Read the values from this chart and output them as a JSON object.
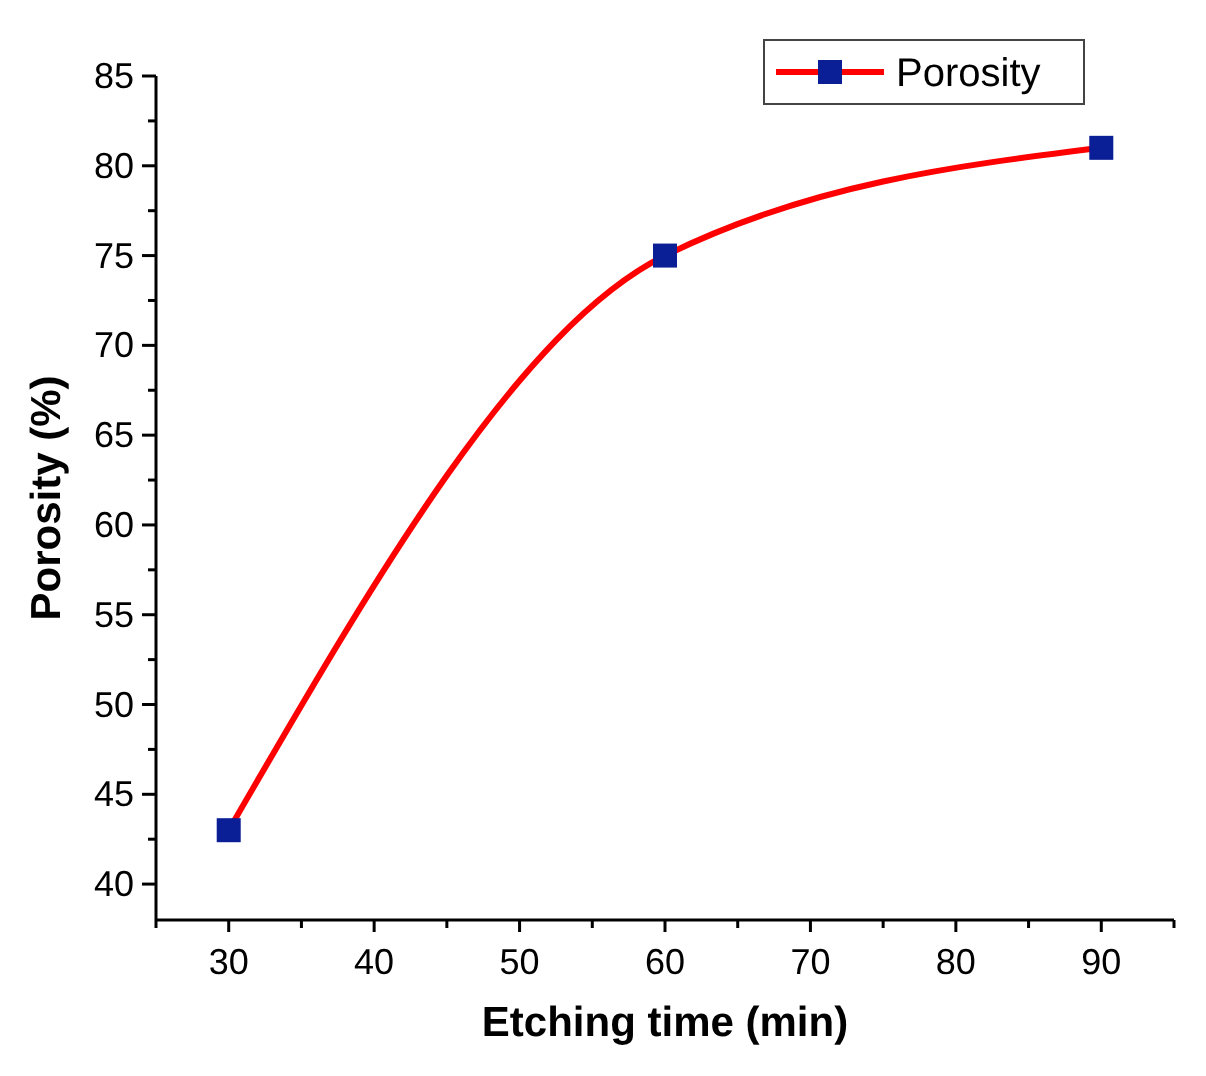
{
  "chart_data": {
    "type": "line",
    "xlabel": "Etching time (min)",
    "ylabel": "Porosity (%)",
    "x": [
      30,
      60,
      90
    ],
    "series": [
      {
        "name": "Porosity",
        "color": "#ff0000",
        "values": [
          43,
          75,
          81
        ]
      }
    ],
    "xlim": [
      25,
      95
    ],
    "xticks": [
      {
        "value": 25,
        "label": null
      },
      30,
      {
        "value": 35,
        "label": null
      },
      40,
      {
        "value": 45,
        "label": null
      },
      50,
      {
        "value": 55,
        "label": null
      },
      60,
      {
        "value": 65,
        "label": null
      },
      70,
      {
        "value": 75,
        "label": null
      },
      80,
      {
        "value": 85,
        "label": null
      },
      90,
      {
        "value": 95,
        "label": null
      }
    ],
    "ylim": [
      38,
      85
    ],
    "yticks": [
      40,
      {
        "value": 42.5,
        "label": null
      },
      45,
      {
        "value": 47.5,
        "label": null
      },
      50,
      {
        "value": 52.5,
        "label": null
      },
      55,
      {
        "value": 57.5,
        "label": null
      },
      60,
      {
        "value": 62.5,
        "label": null
      },
      65,
      {
        "value": 67.5,
        "label": null
      },
      70,
      {
        "value": 72.5,
        "label": null
      },
      75,
      {
        "value": 77.5,
        "label": null
      },
      80,
      {
        "value": 82.5,
        "label": null
      },
      85
    ],
    "marker": "square",
    "line_style": "solid",
    "grid": false,
    "legend": "top right"
  }
}
